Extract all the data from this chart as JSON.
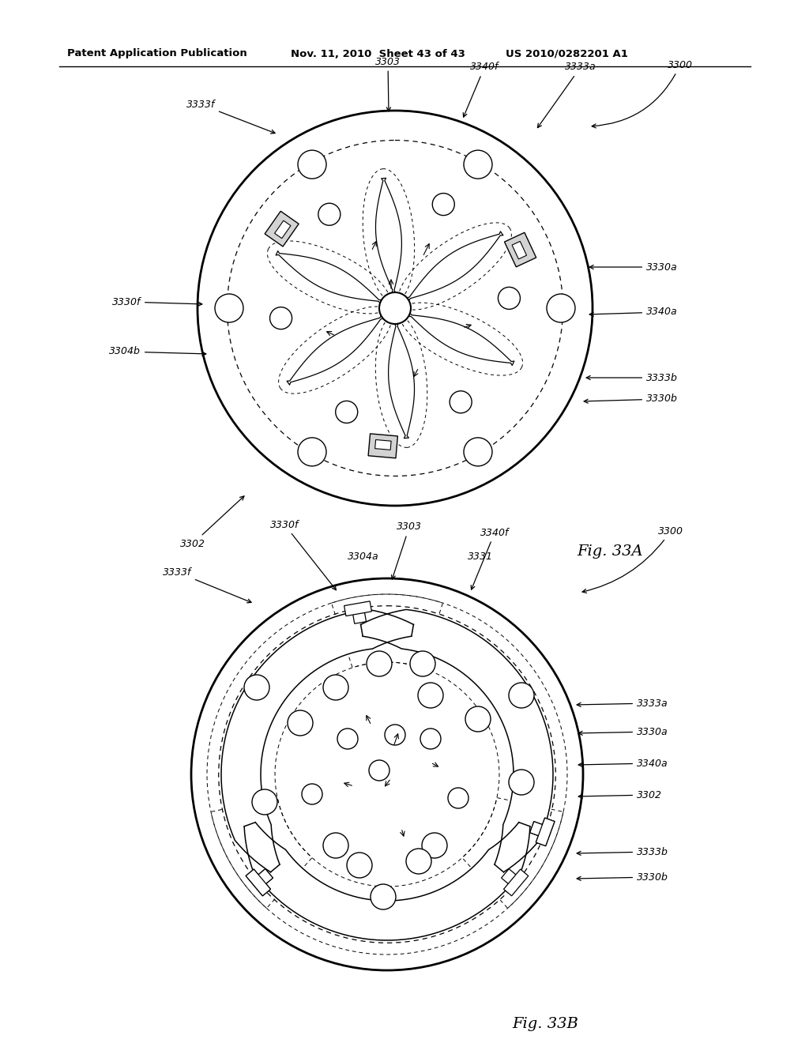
{
  "bg_color": "#ffffff",
  "header_left": "Patent Application Publication",
  "header_mid": "Nov. 11, 2010  Sheet 43 of 43",
  "header_right": "US 2010/0282201 A1",
  "fig_a_label": "Fig. 33A",
  "fig_b_label": "Fig. 33B"
}
